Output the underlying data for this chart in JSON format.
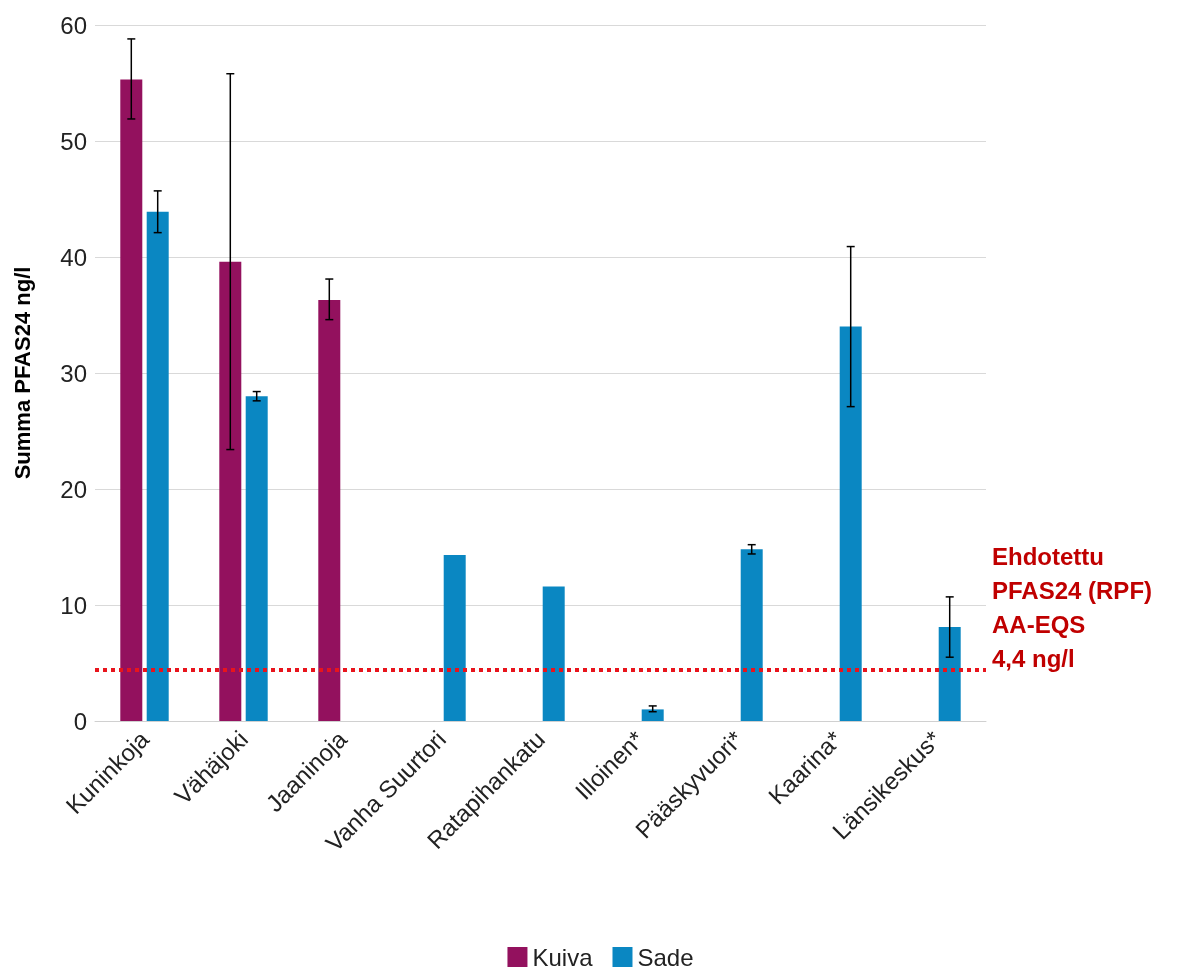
{
  "chart_data": {
    "type": "bar",
    "ylabel": "Summa PFAS24 ng/l",
    "categories": [
      "Kuninkoja",
      "Vähäjoki",
      "Jaaninoja",
      "Vanha Suurtori",
      "Ratapihankatu",
      "Illoinen*",
      "Pääskyvuori*",
      "Kaarina*",
      "Länsikeskus*"
    ],
    "series": [
      {
        "name": "Kuiva",
        "color": "#93115e",
        "values": [
          55.3,
          39.6,
          36.3,
          null,
          null,
          null,
          null,
          null,
          null
        ],
        "errors": [
          [
            51.9,
            58.8
          ],
          [
            23.4,
            55.8
          ],
          [
            34.6,
            38.1
          ],
          null,
          null,
          null,
          null,
          null,
          null
        ]
      },
      {
        "name": "Sade",
        "color": "#0a87c2",
        "values": [
          43.9,
          28.0,
          null,
          14.3,
          11.6,
          1.0,
          14.8,
          34.0,
          8.1
        ],
        "errors": [
          [
            42.1,
            45.7
          ],
          [
            27.6,
            28.4
          ],
          null,
          null,
          null,
          [
            0.8,
            1.3
          ],
          [
            14.4,
            15.2
          ],
          [
            27.1,
            40.9
          ],
          [
            5.5,
            10.7
          ]
        ]
      }
    ],
    "ylim": [
      0,
      60
    ],
    "yticks": [
      0,
      10,
      20,
      30,
      40,
      50,
      60
    ],
    "grid": "y",
    "legend": "bottom",
    "ref_lines": [
      {
        "axis": "y",
        "value": 4.4,
        "label": "Ehdotettu\nPFAS24 (RPF)\nAA-EQS\n4,4 ng/l",
        "color": "#e8141c",
        "line_style": "dotted"
      }
    ]
  }
}
